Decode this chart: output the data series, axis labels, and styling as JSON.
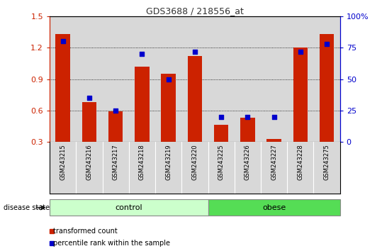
{
  "title": "GDS3688 / 218556_at",
  "samples": [
    "GSM243215",
    "GSM243216",
    "GSM243217",
    "GSM243218",
    "GSM243219",
    "GSM243220",
    "GSM243225",
    "GSM243226",
    "GSM243227",
    "GSM243228",
    "GSM243275"
  ],
  "red_bars": [
    1.33,
    0.68,
    0.59,
    1.02,
    0.95,
    1.12,
    0.46,
    0.53,
    0.33,
    1.2,
    1.33
  ],
  "blue_squares_pct": [
    80,
    35,
    25,
    70,
    50,
    72,
    20,
    20,
    20,
    72,
    78
  ],
  "ylim_left": [
    0.3,
    1.5
  ],
  "ylim_right": [
    0,
    100
  ],
  "yticks_left": [
    0.3,
    0.6,
    0.9,
    1.2,
    1.5
  ],
  "yticks_right": [
    0,
    25,
    50,
    75,
    100
  ],
  "yticklabels_right": [
    "0",
    "25",
    "50",
    "75",
    "100%"
  ],
  "bar_color": "#cc2200",
  "square_color": "#0000cc",
  "control_indices": [
    0,
    1,
    2,
    3,
    4,
    5
  ],
  "obese_indices": [
    6,
    7,
    8,
    9,
    10
  ],
  "control_label": "control",
  "obese_label": "obese",
  "disease_state_label": "disease state",
  "legend_red": "transformed count",
  "legend_blue": "percentile rank within the sample",
  "bar_width": 0.55,
  "plot_bg": "#d8d8d8",
  "control_bg": "#ccffcc",
  "obese_bg": "#55dd55",
  "title_color": "#333333",
  "left_axis_color": "#cc2200",
  "right_axis_color": "#0000cc",
  "grid_lines": [
    0.6,
    0.9,
    1.2
  ],
  "figsize": [
    5.39,
    3.54
  ],
  "dpi": 100
}
